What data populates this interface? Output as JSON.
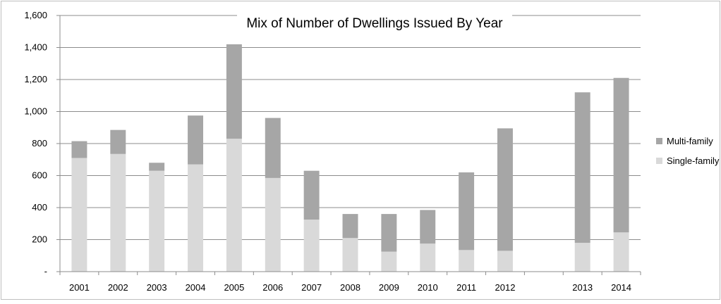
{
  "chart_data": {
    "type": "bar",
    "stacked": true,
    "title": "Mix of Number of Dwellings Issued By Year",
    "xlabel": "",
    "ylabel": "",
    "ylim": [
      0,
      1600
    ],
    "y_ticks": [
      0,
      200,
      400,
      600,
      800,
      1000,
      1200,
      1400,
      1600
    ],
    "y_tick_labels": [
      "-",
      "200",
      "400",
      "600",
      "800",
      "1,000",
      "1,200",
      "1,400",
      "1,600"
    ],
    "categories": [
      "2001",
      "2002",
      "2003",
      "2004",
      "2005",
      "2006",
      "2007",
      "2008",
      "2009",
      "2010",
      "2011",
      "2012",
      "",
      "2013",
      "2014"
    ],
    "grid": true,
    "legend_position": "right",
    "series": [
      {
        "name": "Single-family",
        "color": "#d9d9d9",
        "values": [
          710,
          735,
          630,
          670,
          830,
          585,
          325,
          210,
          125,
          175,
          135,
          130,
          null,
          180,
          245
        ]
      },
      {
        "name": "Multi-family",
        "color": "#a6a6a6",
        "values": [
          105,
          150,
          50,
          305,
          590,
          375,
          305,
          150,
          235,
          210,
          485,
          765,
          null,
          940,
          965
        ]
      }
    ],
    "legend_order": [
      "Multi-family",
      "Single-family"
    ]
  }
}
